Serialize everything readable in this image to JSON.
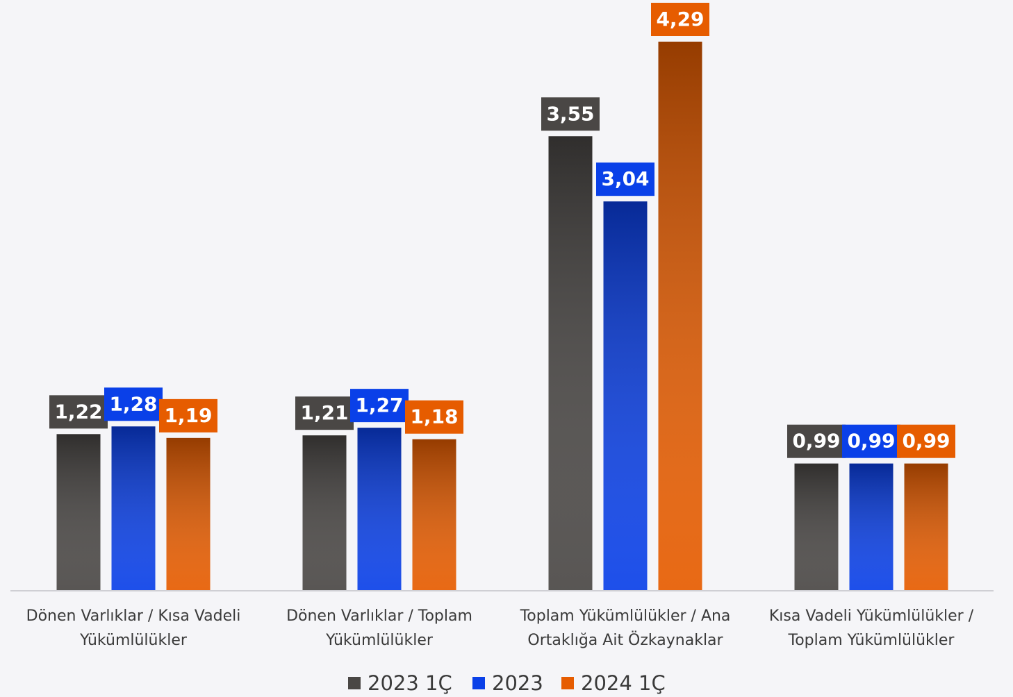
{
  "chart_data": {
    "type": "bar",
    "categories": [
      "Dönen Varlıklar / Kısa Vadeli Yükümlülükler",
      "Dönen Varlıklar / Toplam Yükümlülükler",
      "Toplam Yükümlülükler / Ana Ortaklığa Ait Özkaynaklar",
      "Kısa Vadeli Yükümlülükler / Toplam Yükümlülükler"
    ],
    "series": [
      {
        "name": "2023 1Ç",
        "color": "#4a4745",
        "values": [
          1.22,
          1.21,
          3.55,
          0.99
        ],
        "value_labels": [
          "1,22",
          "1,21",
          "3,55",
          "0,99"
        ]
      },
      {
        "name": "2023",
        "color": "#0a40e8",
        "values": [
          1.28,
          1.27,
          3.04,
          0.99
        ],
        "value_labels": [
          "1,28",
          "1,27",
          "3,04",
          "0,99"
        ]
      },
      {
        "name": "2024 1Ç",
        "color": "#e65c00",
        "values": [
          1.19,
          1.18,
          4.29,
          0.99
        ],
        "value_labels": [
          "1,19",
          "1,18",
          "4,29",
          "0,99"
        ]
      }
    ],
    "legend": "bottom"
  }
}
